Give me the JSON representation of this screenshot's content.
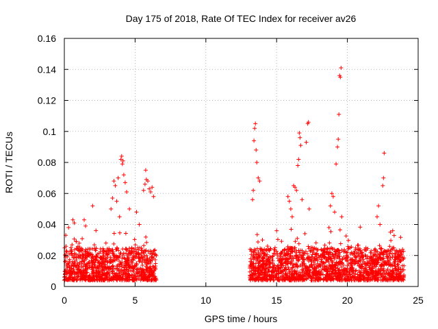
{
  "chart_data": {
    "type": "scatter",
    "title": "Day 175 of 2018, Rate Of TEC Index for receiver av26",
    "xlabel": "GPS time / hours",
    "ylabel": "ROTI / TECUs",
    "xlim": [
      0,
      25
    ],
    "ylim": [
      0,
      0.16
    ],
    "xticks": [
      0,
      5,
      10,
      15,
      20,
      25
    ],
    "xtick_labels": [
      "0",
      "5",
      "10",
      "15",
      "20",
      "25"
    ],
    "yticks": [
      0,
      0.02,
      0.04,
      0.06,
      0.08,
      0.1,
      0.12,
      0.14,
      0.16
    ],
    "ytick_labels": [
      "0",
      "0.02",
      "0.04",
      "0.06",
      "0.08",
      "0.1",
      "0.12",
      "0.14",
      "0.16"
    ],
    "grid": true,
    "marker": "plus",
    "marker_color": "#ff0000",
    "series": [
      {
        "name": "ROTI",
        "segments": [
          [
            0,
            6.5
          ],
          [
            13.1,
            24.0
          ]
        ],
        "baseline_range": [
          0.004,
          0.025
        ],
        "notable_points": [
          [
            0.1,
            0.033
          ],
          [
            0.3,
            0.038
          ],
          [
            0.6,
            0.043
          ],
          [
            0.7,
            0.041
          ],
          [
            1.4,
            0.043
          ],
          [
            1.5,
            0.039
          ],
          [
            2.0,
            0.052
          ],
          [
            3.3,
            0.05
          ],
          [
            3.4,
            0.057
          ],
          [
            3.5,
            0.068
          ],
          [
            3.6,
            0.065
          ],
          [
            3.7,
            0.055
          ],
          [
            3.8,
            0.07
          ],
          [
            3.9,
            0.045
          ],
          [
            4.0,
            0.082
          ],
          [
            4.05,
            0.084
          ],
          [
            4.1,
            0.079
          ],
          [
            4.15,
            0.081
          ],
          [
            4.2,
            0.072
          ],
          [
            4.3,
            0.067
          ],
          [
            4.4,
            0.061
          ],
          [
            4.6,
            0.05
          ],
          [
            5.1,
            0.048
          ],
          [
            5.3,
            0.04
          ],
          [
            5.6,
            0.062
          ],
          [
            5.7,
            0.066
          ],
          [
            5.75,
            0.075
          ],
          [
            5.8,
            0.069
          ],
          [
            5.9,
            0.068
          ],
          [
            6.0,
            0.063
          ],
          [
            6.1,
            0.061
          ],
          [
            6.2,
            0.064
          ],
          [
            6.3,
            0.058
          ],
          [
            13.3,
            0.056
          ],
          [
            13.35,
            0.062
          ],
          [
            13.4,
            0.094
          ],
          [
            13.45,
            0.102
          ],
          [
            13.5,
            0.105
          ],
          [
            13.55,
            0.088
          ],
          [
            13.6,
            0.08
          ],
          [
            13.7,
            0.07
          ],
          [
            13.8,
            0.068
          ],
          [
            14.0,
            0.03
          ],
          [
            15.0,
            0.036
          ],
          [
            15.8,
            0.058
          ],
          [
            15.9,
            0.055
          ],
          [
            16.0,
            0.05
          ],
          [
            16.1,
            0.045
          ],
          [
            16.2,
            0.065
          ],
          [
            16.3,
            0.064
          ],
          [
            16.4,
            0.062
          ],
          [
            16.5,
            0.078
          ],
          [
            16.55,
            0.082
          ],
          [
            16.6,
            0.099
          ],
          [
            16.65,
            0.096
          ],
          [
            16.7,
            0.091
          ],
          [
            16.8,
            0.056
          ],
          [
            17.1,
            0.093
          ],
          [
            17.2,
            0.105
          ],
          [
            17.25,
            0.106
          ],
          [
            17.3,
            0.05
          ],
          [
            18.7,
            0.038
          ],
          [
            18.8,
            0.052
          ],
          [
            18.9,
            0.06
          ],
          [
            19.0,
            0.058
          ],
          [
            19.1,
            0.048
          ],
          [
            19.2,
            0.079
          ],
          [
            19.3,
            0.09
          ],
          [
            19.35,
            0.095
          ],
          [
            19.4,
            0.111
          ],
          [
            19.45,
            0.136
          ],
          [
            19.5,
            0.135
          ],
          [
            19.55,
            0.141
          ],
          [
            19.6,
            0.045
          ],
          [
            22.1,
            0.045
          ],
          [
            22.2,
            0.052
          ],
          [
            22.3,
            0.04
          ],
          [
            22.5,
            0.065
          ],
          [
            22.55,
            0.07
          ],
          [
            22.6,
            0.086
          ],
          [
            23.2,
            0.036
          ]
        ]
      }
    ]
  }
}
